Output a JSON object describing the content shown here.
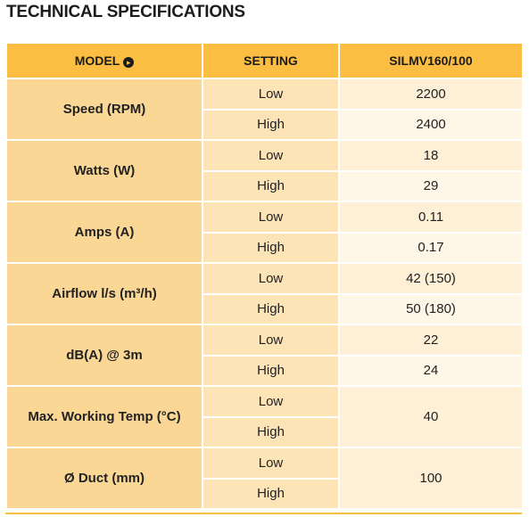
{
  "title": "TECHNICAL SPECIFICATIONS",
  "headers": {
    "model": "MODEL",
    "setting": "SETTING",
    "product": "SILMV160/100",
    "arrow_icon": "▸"
  },
  "rows": [
    {
      "label": "Speed (RPM)",
      "settings": [
        "Low",
        "High"
      ],
      "values": [
        "2200",
        "2400"
      ]
    },
    {
      "label": "Watts (W)",
      "settings": [
        "Low",
        "High"
      ],
      "values": [
        "18",
        "29"
      ]
    },
    {
      "label": "Amps (A)",
      "settings": [
        "Low",
        "High"
      ],
      "values": [
        "0.11",
        "0.17"
      ]
    },
    {
      "label": "Airflow l/s (m³/h)",
      "settings": [
        "Low",
        "High"
      ],
      "values": [
        "42 (150)",
        "50 (180)"
      ]
    },
    {
      "label": "dB(A) @ 3m",
      "settings": [
        "Low",
        "High"
      ],
      "values": [
        "22",
        "24"
      ]
    },
    {
      "label": "Max. Working Temp (°C)",
      "settings": [
        "Low",
        "High"
      ],
      "value": "40"
    },
    {
      "label": "Ø Duct (mm)",
      "settings": [
        "Low",
        "High"
      ],
      "value": "100"
    }
  ],
  "colors": {
    "header": "#fbbe43",
    "label_cell": "#fbd796",
    "setting_cell": "#fce4b7",
    "value_cell": "#fdf0d6",
    "value_cell_alt": "#fef6e6"
  }
}
